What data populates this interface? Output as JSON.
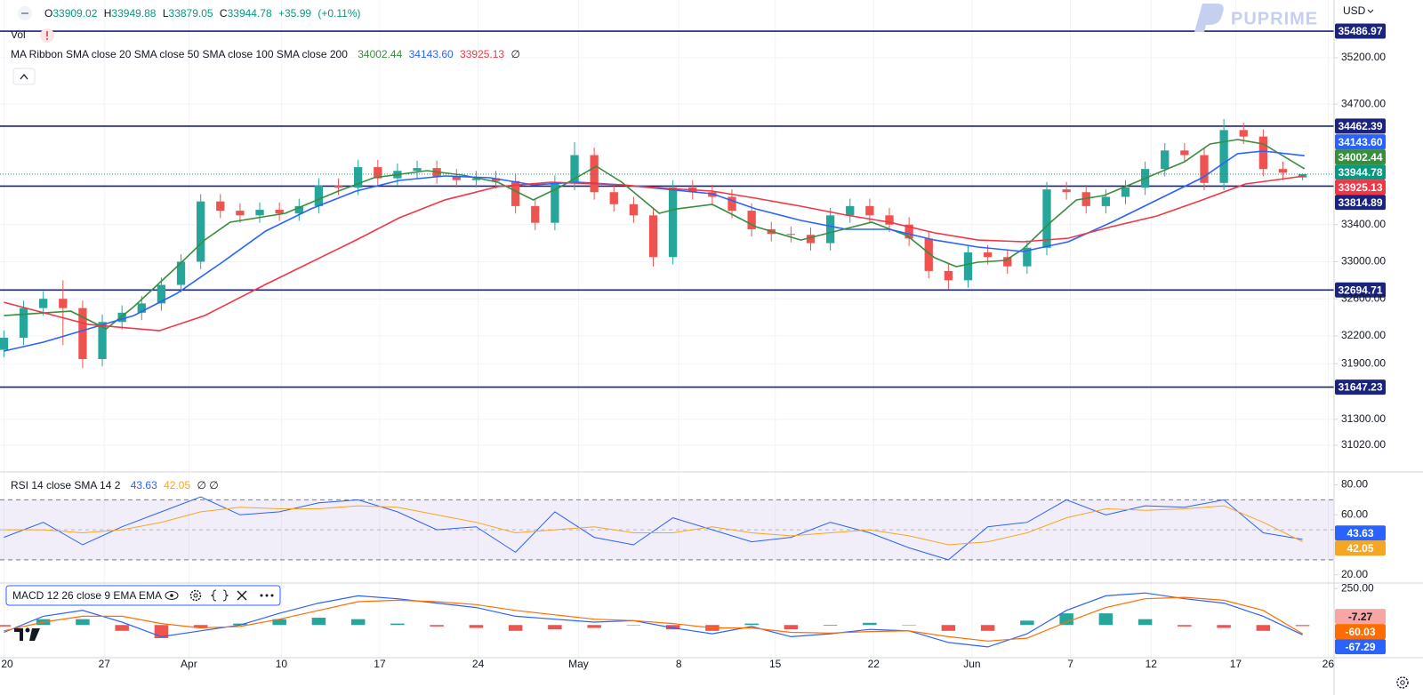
{
  "header": {
    "ohlc_labels": [
      "O",
      "H",
      "L",
      "C"
    ],
    "change": "+35.99",
    "change_pct": "(+0.11%)",
    "vol": "Vol",
    "currency": "USD",
    "logo": "PUPRIME"
  },
  "chart_data": [
    {
      "type": "candlestick",
      "title": "MA Ribbon SMA close 20 SMA close 50 SMA close 100 SMA close 200",
      "title_suffix": "∅",
      "open": [
        32050,
        32180,
        32500,
        32600,
        32500,
        31950,
        32350,
        32450,
        32550,
        32750,
        33000,
        33650,
        33550,
        33500,
        33560,
        33520,
        33600,
        33820,
        33800,
        34020,
        33900,
        33980,
        34010,
        33920,
        33880,
        33900,
        33870,
        33600,
        33420,
        33850,
        34150,
        33750,
        33620,
        33500,
        33050,
        33800,
        33750,
        33700,
        33550,
        33350,
        33300,
        33290,
        33200,
        33500,
        33600,
        33500,
        33400,
        33250,
        32900,
        32800,
        33100,
        33050,
        32950,
        33150,
        33780,
        33750,
        33600,
        33700,
        33800,
        34000,
        34200,
        34150,
        33850,
        34420,
        34350,
        34000,
        33909.02
      ],
      "high": [
        32260,
        32580,
        32680,
        32800,
        32580,
        32430,
        32530,
        32630,
        32830,
        33080,
        33730,
        33730,
        33630,
        33640,
        33640,
        33680,
        33900,
        33900,
        34100,
        34100,
        34060,
        34090,
        34090,
        34000,
        33980,
        33980,
        33950,
        33680,
        33930,
        34289,
        34230,
        33830,
        33700,
        33580,
        33880,
        33880,
        33830,
        33780,
        33630,
        33430,
        33380,
        33370,
        33580,
        33680,
        33680,
        33580,
        33480,
        33330,
        32980,
        33180,
        33180,
        33130,
        33230,
        33860,
        33860,
        33830,
        33780,
        33880,
        34080,
        34280,
        34280,
        34230,
        34540,
        34500,
        34430,
        34080,
        33949.88
      ],
      "low": [
        31970,
        32100,
        32420,
        32100,
        31850,
        31870,
        32270,
        32370,
        32470,
        32670,
        32920,
        33470,
        33420,
        33420,
        33440,
        33440,
        33520,
        33720,
        33720,
        33820,
        33820,
        33900,
        33840,
        33800,
        33800,
        33790,
        33520,
        33340,
        33340,
        33770,
        33670,
        33540,
        33420,
        32950,
        32970,
        33670,
        33620,
        33470,
        33270,
        33220,
        33210,
        33120,
        33120,
        33420,
        33420,
        33320,
        33170,
        32820,
        32700,
        32720,
        32970,
        32870,
        32870,
        33070,
        33670,
        33520,
        33520,
        33620,
        33720,
        33920,
        34070,
        33770,
        33770,
        34270,
        33920,
        33880,
        33879.05
      ],
      "close": [
        32180,
        32500,
        32600,
        32500,
        31950,
        32350,
        32450,
        32550,
        32750,
        33000,
        33650,
        33550,
        33500,
        33560,
        33520,
        33600,
        33820,
        33800,
        34020,
        33900,
        33980,
        34010,
        33920,
        33880,
        33900,
        33870,
        33600,
        33420,
        33850,
        34150,
        33750,
        33620,
        33500,
        33050,
        33800,
        33750,
        33700,
        33550,
        33350,
        33300,
        33290,
        33200,
        33500,
        33600,
        33500,
        33400,
        33250,
        32900,
        32800,
        33100,
        33050,
        32950,
        33150,
        33780,
        33750,
        33600,
        33700,
        33800,
        34000,
        34200,
        34150,
        33850,
        34420,
        34350,
        34000,
        33960,
        33944.78
      ],
      "up_color": "#26a69a",
      "down_color": "#ef5350",
      "last_color": "#089981",
      "series": [
        {
          "color": "#388e3c",
          "x": [
            0,
            3.4,
            5.2,
            6.6,
            8.8,
            10.2,
            11.5,
            14.3,
            17.0,
            18.8,
            21.5,
            23.3,
            25.1,
            26.9,
            28.3,
            30.1,
            31.4,
            33.3,
            34.2,
            36.0,
            36.9,
            38.2,
            40.5,
            42.3,
            44.1,
            45.9,
            47.3,
            48.4,
            49.5,
            50.9,
            51.8,
            53.2,
            54.5,
            55.9,
            57.2,
            58.6,
            60.0,
            61.3,
            62.7,
            64.0,
            66.1
          ],
          "values": [
            32419,
            32467,
            32276,
            32515,
            32947,
            33234,
            33426,
            33522,
            33762,
            33906,
            33982,
            33934,
            33858,
            33666,
            33810,
            34030,
            33858,
            33522,
            33570,
            33618,
            33522,
            33378,
            33234,
            33330,
            33426,
            33282,
            33043,
            32947,
            32995,
            33014,
            33138,
            33426,
            33666,
            33714,
            33829,
            33954,
            34078,
            34270,
            34318,
            34270,
            34002.44
          ]
        },
        {
          "color": "#2962ff",
          "x": [
            0,
            2.0,
            4.3,
            6.6,
            8.8,
            11.1,
            13.3,
            15.6,
            17.9,
            20.1,
            22.4,
            24.7,
            26.9,
            29.2,
            31.4,
            33.7,
            36.0,
            38.2,
            40.5,
            42.8,
            45.0,
            47.3,
            49.5,
            51.8,
            54.1,
            56.3,
            58.6,
            60.9,
            62.7,
            64.0,
            66.1
          ],
          "values": [
            32036,
            32132,
            32276,
            32419,
            32659,
            32995,
            33330,
            33570,
            33762,
            33877,
            33925,
            33906,
            33829,
            33858,
            33829,
            33781,
            33733,
            33570,
            33445,
            33350,
            33350,
            33234,
            33158,
            33110,
            33215,
            33426,
            33666,
            33906,
            34165,
            34193,
            34143.6
          ],
          "value_labels": [
            null,
            null,
            null,
            null,
            null,
            null,
            null,
            null,
            null,
            null,
            null,
            null,
            null,
            null,
            null,
            null,
            null,
            null,
            null,
            null,
            null,
            null,
            null,
            null,
            null,
            null,
            null,
            null,
            null,
            null,
            "34143.60"
          ]
        },
        {
          "color": "#f23645",
          "x": [
            0,
            4.3,
            7.9,
            10.2,
            13.3,
            17.9,
            20.1,
            22.4,
            25.1,
            27.8,
            31.4,
            33.7,
            36.0,
            38.2,
            40.5,
            42.8,
            45.0,
            47.3,
            49.5,
            51.8,
            54.1,
            56.3,
            58.6,
            60.9,
            63.1,
            66.1
          ],
          "values": [
            32563,
            32323,
            32256,
            32419,
            32755,
            33234,
            33474,
            33666,
            33810,
            33858,
            33829,
            33791,
            33762,
            33685,
            33599,
            33503,
            33426,
            33311,
            33234,
            33215,
            33254,
            33378,
            33493,
            33666,
            33839,
            33925.13
          ]
        }
      ],
      "levels": [
        35486.97,
        34462.39,
        33814.89,
        32694.71,
        31647.23
      ],
      "level_color": "#1a237e",
      "xlim": [
        -0.2,
        67.6
      ],
      "ylim": [
        30742,
        35823
      ],
      "yticks": [
        {
          "value": 35200,
          "label": "35200.00"
        },
        {
          "value": 34700,
          "label": "34700.00"
        },
        {
          "value": 33400,
          "label": "33400.00"
        },
        {
          "value": 33000,
          "label": "33000.00"
        },
        {
          "value": 32600,
          "label": "32600.00"
        },
        {
          "value": 32200,
          "label": "32200.00"
        },
        {
          "value": 31900,
          "label": "31900.00"
        },
        {
          "value": 31300,
          "label": "31300.00"
        },
        {
          "value": 31020,
          "label": "31020.00"
        }
      ],
      "xticks": [
        {
          "value": 0,
          "label": "20"
        },
        {
          "value": 5.1,
          "label": "27"
        },
        {
          "value": 9.4,
          "label": "Apr"
        },
        {
          "value": 14.1,
          "label": "10"
        },
        {
          "value": 19.1,
          "label": "17"
        },
        {
          "value": 24.1,
          "label": "24"
        },
        {
          "value": 29.2,
          "label": "May"
        },
        {
          "value": 34.3,
          "label": "8"
        },
        {
          "value": 39.2,
          "label": "15"
        },
        {
          "value": 44.2,
          "label": "22"
        },
        {
          "value": 49.2,
          "label": "Jun"
        },
        {
          "value": 54.2,
          "label": "7"
        },
        {
          "value": 58.3,
          "label": "12"
        },
        {
          "value": 62.6,
          "label": "17"
        },
        {
          "value": 67.3,
          "label": "26"
        }
      ],
      "grid": true
    },
    {
      "type": "line",
      "title": "RSI 14 close SMA 14 2",
      "title_suffix": "∅ ∅",
      "series": [
        {
          "color": "#2962ff",
          "x": [
            0,
            2,
            4,
            6,
            8,
            10,
            12,
            14,
            16,
            18,
            20,
            22,
            24,
            26,
            28,
            30,
            32,
            34,
            36,
            38,
            40,
            42,
            44,
            46,
            48,
            50,
            52,
            54,
            56,
            58,
            60,
            62,
            64,
            66
          ],
          "values": [
            45,
            55,
            40,
            52,
            62,
            72,
            60,
            62,
            68,
            70,
            62,
            50,
            52,
            35,
            62,
            45,
            40,
            58,
            50,
            42,
            45,
            55,
            48,
            38,
            30,
            52,
            55,
            70,
            60,
            66,
            65,
            70,
            48,
            43.63
          ]
        },
        {
          "color": "#f5a623",
          "x": [
            0,
            2,
            4,
            6,
            8,
            10,
            12,
            14,
            16,
            18,
            20,
            22,
            24,
            26,
            28,
            30,
            32,
            34,
            36,
            38,
            40,
            42,
            44,
            46,
            48,
            50,
            52,
            54,
            56,
            58,
            60,
            62,
            64,
            66
          ],
          "values": [
            50,
            50,
            48,
            50,
            55,
            62,
            65,
            64,
            64,
            66,
            65,
            60,
            55,
            48,
            50,
            52,
            48,
            48,
            52,
            48,
            46,
            48,
            50,
            46,
            40,
            42,
            48,
            58,
            64,
            63,
            64,
            66,
            55,
            42.05
          ]
        }
      ],
      "bands": [
        30,
        70
      ],
      "midline": 50,
      "band_color": "#7e57c2",
      "xlim": [
        -0.2,
        67.6
      ],
      "ylim": [
        15.1,
        88.6
      ],
      "yticks": [
        {
          "value": 80,
          "label": "80.00"
        },
        {
          "value": 60,
          "label": "60.00"
        },
        {
          "value": 20,
          "label": "20.00"
        }
      ]
    },
    {
      "type": "macd",
      "title": "MACD 12 26 close 9 EMA EMA",
      "series": [
        {
          "kind": "histogram",
          "color": "#26a69a",
          "down_color": "#ef5350",
          "label_color": "#f7a5a5",
          "x": [
            0,
            2,
            4,
            6,
            8,
            10,
            12,
            14,
            16,
            18,
            20,
            22,
            24,
            26,
            28,
            30,
            32,
            34,
            36,
            38,
            40,
            42,
            44,
            46,
            48,
            50,
            52,
            54,
            56,
            58,
            60,
            62,
            64,
            66
          ],
          "values": [
            -10,
            40,
            40,
            -40,
            -90,
            -20,
            10,
            40,
            50,
            40,
            10,
            -10,
            -20,
            -40,
            -30,
            -20,
            0,
            -30,
            -40,
            10,
            -30,
            -5,
            15,
            0,
            -40,
            -40,
            30,
            80,
            80,
            40,
            -10,
            -20,
            -40,
            -7.27
          ]
        },
        {
          "kind": "line",
          "color": "#2962ff",
          "x": [
            0,
            2,
            4,
            6,
            8,
            10,
            12,
            14,
            16,
            18,
            20,
            22,
            24,
            26,
            28,
            30,
            32,
            34,
            36,
            38,
            40,
            42,
            44,
            46,
            48,
            50,
            52,
            54,
            56,
            58,
            60,
            62,
            64,
            66
          ],
          "values": [
            -50,
            60,
            100,
            20,
            -80,
            -40,
            0,
            80,
            150,
            200,
            180,
            150,
            120,
            60,
            40,
            20,
            30,
            -20,
            -60,
            -10,
            -80,
            -60,
            -30,
            -40,
            -120,
            -150,
            -60,
            100,
            200,
            220,
            180,
            150,
            60,
            -67.29
          ]
        },
        {
          "kind": "line",
          "color": "#ff6d00",
          "x": [
            0,
            2,
            4,
            6,
            8,
            10,
            12,
            14,
            16,
            18,
            20,
            22,
            24,
            26,
            28,
            30,
            32,
            34,
            36,
            38,
            40,
            42,
            44,
            46,
            48,
            50,
            52,
            54,
            56,
            58,
            60,
            62,
            64,
            66
          ],
          "values": [
            -40,
            20,
            60,
            60,
            10,
            -20,
            -10,
            40,
            100,
            160,
            170,
            160,
            140,
            100,
            70,
            40,
            30,
            10,
            -20,
            -20,
            -50,
            -55,
            -45,
            -40,
            -80,
            -110,
            -90,
            20,
            120,
            180,
            190,
            170,
            100,
            -60.03
          ]
        }
      ],
      "xlim": [
        -0.2,
        67.6
      ],
      "ylim": [
        -224,
        288
      ],
      "yticks": [
        {
          "value": 250,
          "label": "250.00"
        }
      ]
    }
  ]
}
